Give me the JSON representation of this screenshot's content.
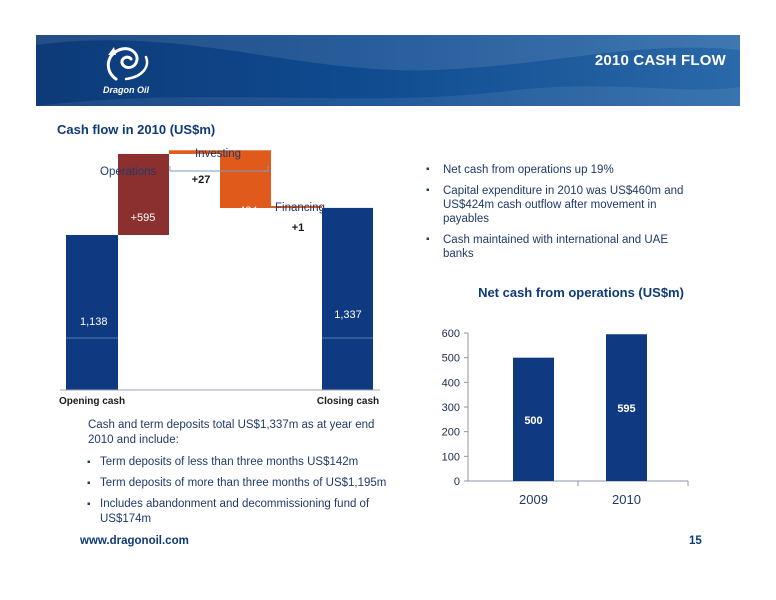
{
  "header": {
    "title": "2010 CASH FLOW",
    "logo_text": "Dragon Oil"
  },
  "section_title": "Cash flow in 2010 (US$m)",
  "colors": {
    "navy": "#0f3a82",
    "maroon": "#8b2f2f",
    "orange": "#e05a1c",
    "banner": "#0d3a78"
  },
  "bullets": [
    "Net cash from operations up 19%",
    "Capital expenditure in 2010 was US$460m and US$424m cash outflow after movement in payables",
    "Cash maintained with international and UAE banks"
  ],
  "deposits": {
    "intro": "Cash and term deposits total US$1,337m as at year end 2010 and include:",
    "items": [
      "Term deposits of less than three months US$142m",
      "Term deposits of more than three months of US$1,195m",
      "Includes abandonment and decommissioning fund of US$174m"
    ]
  },
  "footer": {
    "url": "www.dragonoil.com",
    "page": "15"
  },
  "chart_data": [
    {
      "type": "bar",
      "subtype": "waterfall",
      "title": "Cash flow in 2010 (US$m)",
      "categories": [
        "Opening cash",
        "Operations",
        "Investing",
        "Investing",
        "Financing",
        "Closing cash"
      ],
      "values": [
        1138,
        595,
        27,
        -424,
        1,
        1337
      ],
      "bar_labels": [
        "1,138",
        "+595",
        "+27",
        "- 424",
        "+1",
        "1,337"
      ],
      "x_tick_labels": [
        "Opening cash",
        "",
        "",
        "",
        "",
        "Closing cash"
      ],
      "group_labels": [
        "Operations",
        "Investing",
        "Financing"
      ],
      "colors": [
        "#0f3a82",
        "#8b2f2f",
        "#e05a1c",
        "#e05a1c",
        "#e05a1c",
        "#0f3a82"
      ]
    },
    {
      "type": "bar",
      "title": "Net cash from operations (US$m)",
      "categories": [
        "2009",
        "2010"
      ],
      "values": [
        500,
        595
      ],
      "ylim": [
        0,
        600
      ],
      "yticks": [
        0,
        100,
        200,
        300,
        400,
        500,
        600
      ],
      "color": "#0f3a82"
    }
  ]
}
